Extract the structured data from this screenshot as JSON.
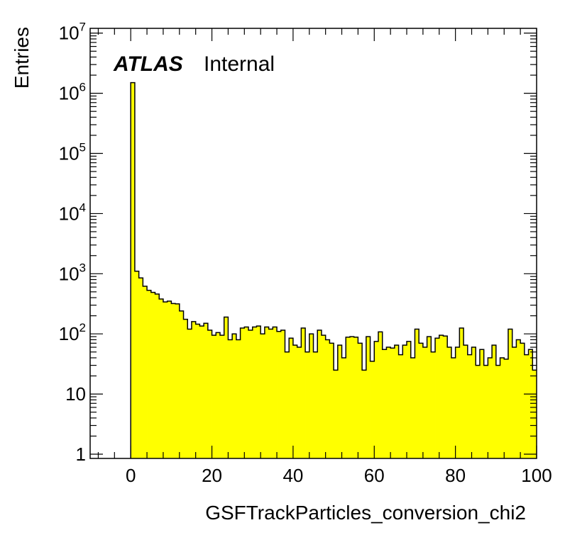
{
  "label": {
    "experiment": "ATLAS",
    "status": "Internal"
  },
  "colors": {
    "fill": "#ffff00",
    "line": "#000000",
    "frame": "#000000"
  },
  "chart_data": {
    "type": "bar",
    "style": "histogram",
    "xlabel": "GSFTrackParticles_conversion_chi2",
    "ylabel": "Entries",
    "xlim": [
      -10,
      100
    ],
    "ylim": [
      0.85,
      12000000
    ],
    "yscale": "log",
    "grid": false,
    "legend": "none",
    "x_ticks": [
      "0",
      "20",
      "40",
      "60",
      "80",
      "100"
    ],
    "y_ticks": [
      {
        "value": 1,
        "base": "1",
        "exp": ""
      },
      {
        "value": 10,
        "base": "10",
        "exp": ""
      },
      {
        "value": 100,
        "base": "10",
        "exp": "2"
      },
      {
        "value": 1000,
        "base": "10",
        "exp": "3"
      },
      {
        "value": 10000,
        "base": "10",
        "exp": "4"
      },
      {
        "value": 100000,
        "base": "10",
        "exp": "5"
      },
      {
        "value": 1000000,
        "base": "10",
        "exp": "6"
      },
      {
        "value": 10000000,
        "base": "10",
        "exp": "7"
      }
    ],
    "bin_width": 1,
    "bin_start": 0,
    "values": [
      1500000,
      1100,
      850,
      620,
      530,
      490,
      460,
      380,
      340,
      350,
      320,
      315,
      240,
      175,
      120,
      160,
      145,
      135,
      150,
      115,
      95,
      105,
      95,
      190,
      80,
      100,
      80,
      125,
      130,
      115,
      130,
      135,
      100,
      130,
      120,
      130,
      110,
      115,
      50,
      85,
      65,
      60,
      125,
      50,
      100,
      50,
      115,
      95,
      80,
      70,
      25,
      65,
      40,
      88,
      90,
      88,
      70,
      25,
      90,
      35,
      75,
      108,
      55,
      60,
      58,
      65,
      45,
      65,
      75,
      40,
      120,
      70,
      60,
      90,
      50,
      85,
      95,
      92,
      60,
      40,
      60,
      125,
      65,
      45,
      60,
      30,
      55,
      30,
      40,
      65,
      30,
      40,
      38,
      120,
      60,
      80,
      70,
      45,
      55,
      25
    ]
  }
}
